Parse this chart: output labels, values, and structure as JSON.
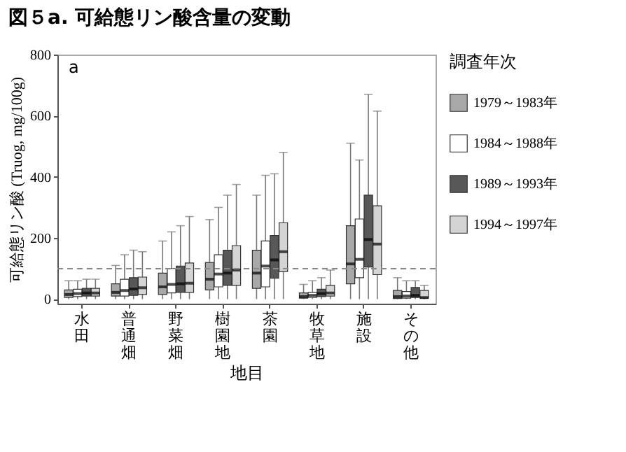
{
  "chart_data": {
    "type": "box",
    "title": "図５a. 可給態リン酸含量の変動",
    "xlabel": "地目",
    "ylabel": "可給態リン酸 (Truog, mg/100g)",
    "legend_title": "調査年次",
    "annotations": [
      "a"
    ],
    "categories": [
      "水田",
      "普通畑",
      "野菜畑",
      "樹園地",
      "茶園",
      "牧草地",
      "施設",
      "その他"
    ],
    "ylim": [
      -15,
      800
    ],
    "yticks": [
      0,
      200,
      400,
      600,
      800
    ],
    "grid": false,
    "legend": "right",
    "ref_lines": [
      {
        "axis": "y",
        "value": 100,
        "label": null,
        "line_style": "dashed",
        "color": "#888888"
      }
    ],
    "series": [
      {
        "name": "1979～1983年",
        "color": "#a8a8a8",
        "boxes": [
          {
            "low": 0,
            "q1": 5,
            "median": 15,
            "q3": 30,
            "high": 60
          },
          {
            "low": 0,
            "q1": 10,
            "median": 22,
            "q3": 50,
            "high": 110
          },
          {
            "low": 0,
            "q1": 15,
            "median": 40,
            "q3": 85,
            "high": 190
          },
          {
            "low": 0,
            "q1": 30,
            "median": 65,
            "q3": 120,
            "high": 260
          },
          {
            "low": 0,
            "q1": 35,
            "median": 85,
            "q3": 160,
            "high": 340
          },
          {
            "low": 0,
            "q1": 3,
            "median": 8,
            "q3": 20,
            "high": 48
          },
          {
            "low": 0,
            "q1": 50,
            "median": 115,
            "q3": 240,
            "high": 510
          },
          {
            "low": 0,
            "q1": 2,
            "median": 8,
            "q3": 28,
            "high": 70
          }
        ]
      },
      {
        "name": "1984～1988年",
        "color": "#ffffff",
        "boxes": [
          {
            "low": 0,
            "q1": 8,
            "median": 18,
            "q3": 32,
            "high": 60
          },
          {
            "low": 0,
            "q1": 10,
            "median": 28,
            "q3": 65,
            "high": 145
          },
          {
            "low": 0,
            "q1": 20,
            "median": 48,
            "q3": 100,
            "high": 220
          },
          {
            "low": 0,
            "q1": 40,
            "median": 82,
            "q3": 145,
            "high": 300
          },
          {
            "low": 0,
            "q1": 40,
            "median": 108,
            "q3": 190,
            "high": 405
          },
          {
            "low": 0,
            "q1": 5,
            "median": 12,
            "q3": 22,
            "high": 60
          },
          {
            "low": 0,
            "q1": 70,
            "median": 130,
            "q3": 262,
            "high": 455
          },
          {
            "low": 0,
            "q1": 3,
            "median": 10,
            "q3": 25,
            "high": 60
          }
        ]
      },
      {
        "name": "1989～1993年",
        "color": "#585858",
        "boxes": [
          {
            "low": 0,
            "q1": 10,
            "median": 20,
            "q3": 35,
            "high": 65
          },
          {
            "low": 0,
            "q1": 12,
            "median": 33,
            "q3": 70,
            "high": 160
          },
          {
            "low": 0,
            "q1": 22,
            "median": 50,
            "q3": 108,
            "high": 240
          },
          {
            "low": 0,
            "q1": 45,
            "median": 85,
            "q3": 160,
            "high": 340
          },
          {
            "low": 0,
            "q1": 68,
            "median": 128,
            "q3": 208,
            "high": 410
          },
          {
            "low": 0,
            "q1": 8,
            "median": 18,
            "q3": 32,
            "high": 70
          },
          {
            "low": 0,
            "q1": 105,
            "median": 195,
            "q3": 340,
            "high": 670
          },
          {
            "low": 0,
            "q1": 5,
            "median": 12,
            "q3": 38,
            "high": 60
          }
        ]
      },
      {
        "name": "1994～1997年",
        "color": "#d4d4d4",
        "boxes": [
          {
            "low": 0,
            "q1": 10,
            "median": 20,
            "q3": 35,
            "high": 65
          },
          {
            "low": 0,
            "q1": 15,
            "median": 37,
            "q3": 72,
            "high": 155
          },
          {
            "low": 0,
            "q1": 22,
            "median": 52,
            "q3": 118,
            "high": 270
          },
          {
            "low": 0,
            "q1": 45,
            "median": 95,
            "q3": 175,
            "high": 375
          },
          {
            "low": 0,
            "q1": 90,
            "median": 155,
            "q3": 250,
            "high": 480
          },
          {
            "low": 0,
            "q1": 10,
            "median": 20,
            "q3": 45,
            "high": 95
          },
          {
            "low": 0,
            "q1": 80,
            "median": 180,
            "q3": 305,
            "high": 615
          },
          {
            "low": 0,
            "q1": 3,
            "median": 5,
            "q3": 28,
            "high": 45
          }
        ]
      }
    ]
  }
}
